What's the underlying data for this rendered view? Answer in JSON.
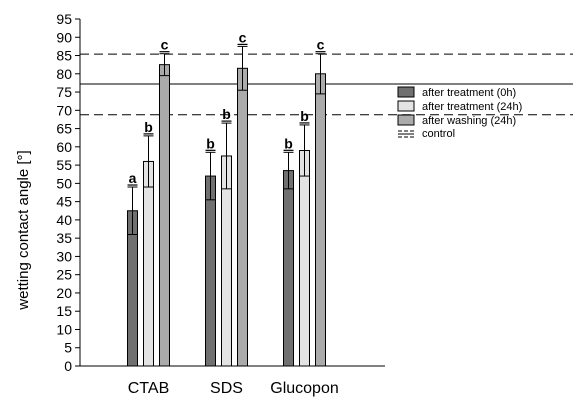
{
  "chart_data": {
    "type": "bar",
    "ylabel": "wetting contact angle [°]",
    "xlabel": "",
    "title": "",
    "ylim": [
      0,
      95
    ],
    "ytick_step": 5,
    "grid": false,
    "legend_position": "right",
    "categories": [
      "CTAB",
      "SDS",
      "Glucopon"
    ],
    "series": [
      {
        "name": "after treatment (0h)",
        "color": "#707070",
        "values": [
          42.5,
          52,
          53.5
        ],
        "errors": [
          6.5,
          6.5,
          5
        ],
        "letters": [
          "a",
          "b",
          "b"
        ]
      },
      {
        "name": "after treatment (24h)",
        "color": "#e3e3e3",
        "values": [
          56,
          57.5,
          59
        ],
        "errors": [
          7,
          9,
          7
        ],
        "letters": [
          "b",
          "b",
          "b"
        ]
      },
      {
        "name": "after washing (24h)",
        "color": "#ababab",
        "values": [
          82.5,
          81.5,
          80
        ],
        "errors": [
          3,
          6,
          5.5
        ],
        "letters": [
          "c",
          "c",
          "c"
        ]
      }
    ],
    "control": {
      "name": "control",
      "value": 77.2,
      "lower": 68.8,
      "upper": 85.4
    }
  }
}
